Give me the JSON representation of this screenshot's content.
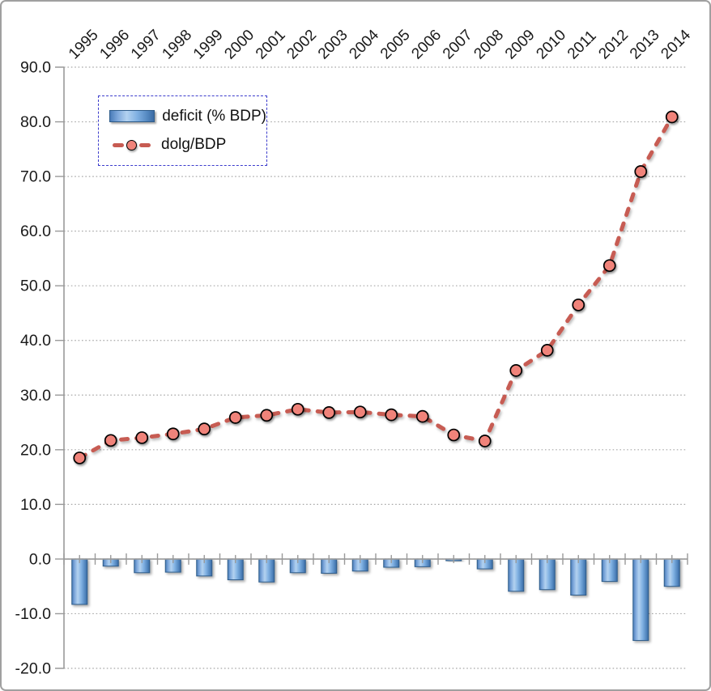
{
  "chart_data": {
    "type": "combo-bar-line",
    "title": "",
    "categories": [
      "1995",
      "1996",
      "1997",
      "1998",
      "1999",
      "2000",
      "2001",
      "2002",
      "2003",
      "2004",
      "2005",
      "2006",
      "2007",
      "2008",
      "2009",
      "2010",
      "2011",
      "2012",
      "2013",
      "2014"
    ],
    "series": [
      {
        "name": "deficit (% BDP)",
        "type": "bar",
        "values": [
          -8.3,
          -1.3,
          -2.5,
          -2.4,
          -3.1,
          -3.8,
          -4.2,
          -2.5,
          -2.6,
          -2.2,
          -1.5,
          -1.4,
          -0.3,
          -1.8,
          -5.9,
          -5.6,
          -6.6,
          -4.1,
          -14.9,
          -5.0
        ]
      },
      {
        "name": "dolg/BDP",
        "type": "line-dashed-markers",
        "values": [
          18.5,
          21.7,
          22.2,
          22.9,
          23.8,
          25.9,
          26.3,
          27.4,
          26.8,
          26.9,
          26.4,
          26.1,
          22.7,
          21.6,
          34.5,
          38.2,
          46.5,
          53.7,
          70.9,
          80.9
        ]
      }
    ],
    "ylim": [
      -20,
      90
    ],
    "ytick_step": 10,
    "ytick_labels": [
      "90.0",
      "80.0",
      "70.0",
      "60.0",
      "50.0",
      "40.0",
      "30.0",
      "20.0",
      "10.0",
      "0.0",
      "-10.0",
      "-20.0"
    ],
    "xlabel": "",
    "ylabel": "",
    "grid": "dotted-horizontal",
    "legend_position": "inset-top-left",
    "x_labels_rotation_deg": -45
  },
  "legend": {
    "items": [
      {
        "label": "deficit (% BDP)",
        "swatch": "bar"
      },
      {
        "label": "dolg/BDP",
        "swatch": "dashed-line-with-marker"
      }
    ]
  },
  "colors": {
    "bar_fill_light": "#b3d2f0",
    "bar_fill_dark": "#3a6aa4",
    "bar_border": "#2e5c8a",
    "line": "#c75b52",
    "marker_fill": "#f0837a",
    "marker_border": "#000000",
    "grid": "#a8a8a8",
    "axis": "#9a9a9a",
    "text": "#1a1a1a",
    "legend_border": "#3c3ccc",
    "frame_border": "#a0a0a0"
  }
}
